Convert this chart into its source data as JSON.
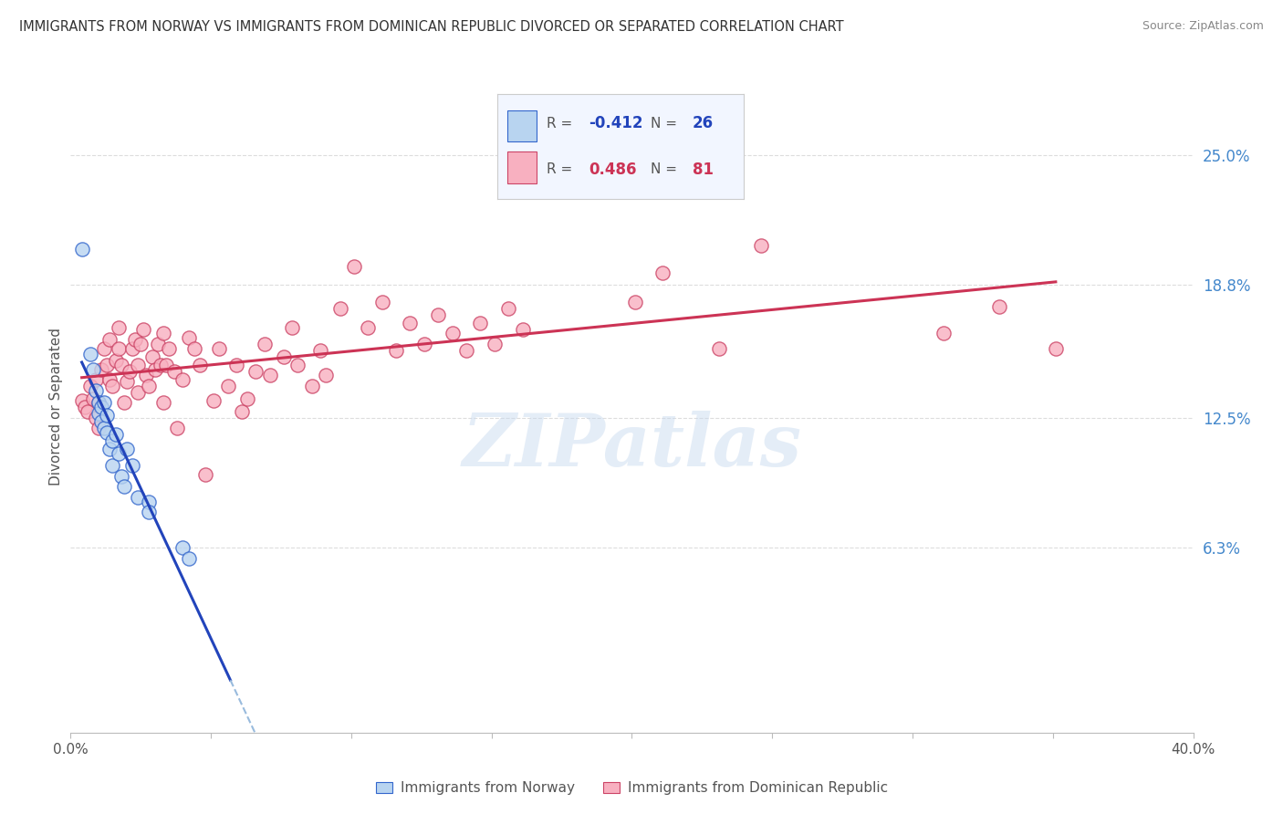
{
  "title": "IMMIGRANTS FROM NORWAY VS IMMIGRANTS FROM DOMINICAN REPUBLIC DIVORCED OR SEPARATED CORRELATION CHART",
  "source": "Source: ZipAtlas.com",
  "ylabel": "Divorced or Separated",
  "ytick_labels": [
    "25.0%",
    "18.8%",
    "12.5%",
    "6.3%"
  ],
  "ytick_values": [
    0.25,
    0.188,
    0.125,
    0.063
  ],
  "xlim": [
    0.0,
    0.4
  ],
  "ylim": [
    -0.025,
    0.285
  ],
  "norway_fill_color": "#b8d4f0",
  "norway_edge_color": "#3366cc",
  "dr_fill_color": "#f8b0c0",
  "dr_edge_color": "#cc4466",
  "norway_line_color": "#2244bb",
  "dr_line_color": "#cc3355",
  "norway_scatter": [
    [
      0.004,
      0.205
    ],
    [
      0.007,
      0.155
    ],
    [
      0.008,
      0.148
    ],
    [
      0.009,
      0.138
    ],
    [
      0.01,
      0.132
    ],
    [
      0.01,
      0.127
    ],
    [
      0.011,
      0.13
    ],
    [
      0.011,
      0.123
    ],
    [
      0.012,
      0.132
    ],
    [
      0.012,
      0.12
    ],
    [
      0.013,
      0.126
    ],
    [
      0.013,
      0.118
    ],
    [
      0.014,
      0.11
    ],
    [
      0.015,
      0.114
    ],
    [
      0.015,
      0.102
    ],
    [
      0.016,
      0.117
    ],
    [
      0.017,
      0.108
    ],
    [
      0.018,
      0.097
    ],
    [
      0.019,
      0.092
    ],
    [
      0.02,
      0.11
    ],
    [
      0.022,
      0.102
    ],
    [
      0.024,
      0.087
    ],
    [
      0.028,
      0.085
    ],
    [
      0.028,
      0.08
    ],
    [
      0.04,
      0.063
    ],
    [
      0.042,
      0.058
    ]
  ],
  "dr_scatter": [
    [
      0.004,
      0.133
    ],
    [
      0.005,
      0.13
    ],
    [
      0.006,
      0.128
    ],
    [
      0.007,
      0.14
    ],
    [
      0.008,
      0.134
    ],
    [
      0.009,
      0.143
    ],
    [
      0.009,
      0.125
    ],
    [
      0.01,
      0.132
    ],
    [
      0.01,
      0.12
    ],
    [
      0.011,
      0.148
    ],
    [
      0.012,
      0.158
    ],
    [
      0.013,
      0.15
    ],
    [
      0.014,
      0.162
    ],
    [
      0.014,
      0.143
    ],
    [
      0.015,
      0.14
    ],
    [
      0.016,
      0.152
    ],
    [
      0.017,
      0.158
    ],
    [
      0.017,
      0.168
    ],
    [
      0.018,
      0.15
    ],
    [
      0.019,
      0.132
    ],
    [
      0.02,
      0.142
    ],
    [
      0.021,
      0.147
    ],
    [
      0.022,
      0.158
    ],
    [
      0.023,
      0.162
    ],
    [
      0.024,
      0.15
    ],
    [
      0.024,
      0.137
    ],
    [
      0.025,
      0.16
    ],
    [
      0.026,
      0.167
    ],
    [
      0.027,
      0.145
    ],
    [
      0.028,
      0.14
    ],
    [
      0.029,
      0.154
    ],
    [
      0.03,
      0.148
    ],
    [
      0.031,
      0.16
    ],
    [
      0.032,
      0.15
    ],
    [
      0.033,
      0.165
    ],
    [
      0.033,
      0.132
    ],
    [
      0.034,
      0.15
    ],
    [
      0.035,
      0.158
    ],
    [
      0.037,
      0.147
    ],
    [
      0.038,
      0.12
    ],
    [
      0.04,
      0.143
    ],
    [
      0.042,
      0.163
    ],
    [
      0.044,
      0.158
    ],
    [
      0.046,
      0.15
    ],
    [
      0.048,
      0.098
    ],
    [
      0.051,
      0.133
    ],
    [
      0.053,
      0.158
    ],
    [
      0.056,
      0.14
    ],
    [
      0.059,
      0.15
    ],
    [
      0.061,
      0.128
    ],
    [
      0.063,
      0.134
    ],
    [
      0.066,
      0.147
    ],
    [
      0.069,
      0.16
    ],
    [
      0.071,
      0.145
    ],
    [
      0.076,
      0.154
    ],
    [
      0.079,
      0.168
    ],
    [
      0.081,
      0.15
    ],
    [
      0.086,
      0.14
    ],
    [
      0.089,
      0.157
    ],
    [
      0.091,
      0.145
    ],
    [
      0.096,
      0.177
    ],
    [
      0.101,
      0.197
    ],
    [
      0.106,
      0.168
    ],
    [
      0.111,
      0.18
    ],
    [
      0.116,
      0.157
    ],
    [
      0.121,
      0.17
    ],
    [
      0.126,
      0.16
    ],
    [
      0.131,
      0.174
    ],
    [
      0.136,
      0.165
    ],
    [
      0.141,
      0.157
    ],
    [
      0.146,
      0.17
    ],
    [
      0.151,
      0.16
    ],
    [
      0.156,
      0.177
    ],
    [
      0.161,
      0.167
    ],
    [
      0.201,
      0.18
    ],
    [
      0.211,
      0.194
    ],
    [
      0.231,
      0.158
    ],
    [
      0.246,
      0.207
    ],
    [
      0.311,
      0.165
    ],
    [
      0.331,
      0.178
    ],
    [
      0.351,
      0.158
    ]
  ],
  "watermark": "ZIPatlas",
  "background_color": "#ffffff",
  "grid_color": "#dddddd",
  "xtick_positions": [
    0.0,
    0.05,
    0.1,
    0.15,
    0.2,
    0.25,
    0.3,
    0.35,
    0.4
  ]
}
